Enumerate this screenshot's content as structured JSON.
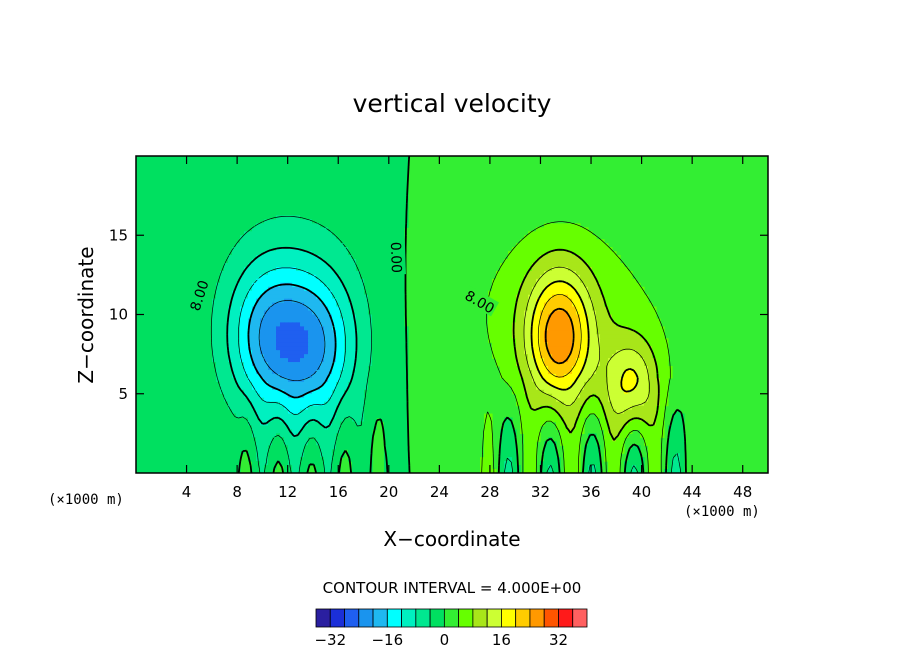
{
  "chart_data": {
    "type": "contour",
    "title": "vertical velocity",
    "xlabel": "X−coordinate",
    "ylabel": "Z−coordinate",
    "x_unit_note": "(×1000 m)",
    "y_unit_note": "(×1000 m)",
    "xlim": [
      0,
      50
    ],
    "ylim": [
      0,
      20
    ],
    "x_ticks": [
      4,
      8,
      12,
      16,
      20,
      24,
      28,
      32,
      36,
      40,
      44,
      48
    ],
    "y_ticks": [
      5,
      10,
      15
    ],
    "contour_interval": 4,
    "contour_note": "CONTOUR INTERVAL = 4.000E+00",
    "contour_labels": [
      {
        "text": "8.00",
        "x": 5,
        "y": 11.2
      },
      {
        "text": "0.00",
        "x": 20.6,
        "y": 13.6
      },
      {
        "text": "8.00",
        "x": 27.2,
        "y": 10.8
      }
    ],
    "features": [
      {
        "kind": "downdraft",
        "x": 10.5,
        "z": 8.5,
        "peak": -14
      },
      {
        "kind": "downdraft",
        "x": 14.2,
        "z": 7.8,
        "peak": -14
      },
      {
        "kind": "updraft",
        "x": 33.5,
        "z": 8.5,
        "peak": 22
      },
      {
        "kind": "updraft",
        "x": 39.2,
        "z": 5.5,
        "peak": 14
      }
    ],
    "colorbar": {
      "labels": [
        "−32",
        "−16",
        "0",
        "16",
        "32"
      ],
      "label_values": [
        -32,
        -16,
        0,
        16,
        32
      ],
      "levels": [
        -40,
        -36,
        -32,
        -28,
        -24,
        -20,
        -16,
        -12,
        -8,
        -4,
        0,
        4,
        8,
        12,
        16,
        20,
        24,
        28,
        32,
        36,
        40
      ],
      "colors": [
        "#7a1ab8",
        "#2a1fa0",
        "#1b2fd8",
        "#1f5ff0",
        "#1a94ee",
        "#1fb8f0",
        "#00ffff",
        "#00f0c0",
        "#00e890",
        "#00e060",
        "#33ee33",
        "#66ff00",
        "#a8e619",
        "#ccff33",
        "#ffff00",
        "#ffcc00",
        "#ff9900",
        "#ff5500",
        "#ff1a1a",
        "#ff6060",
        "#ffa0a0"
      ]
    },
    "grid": false
  }
}
